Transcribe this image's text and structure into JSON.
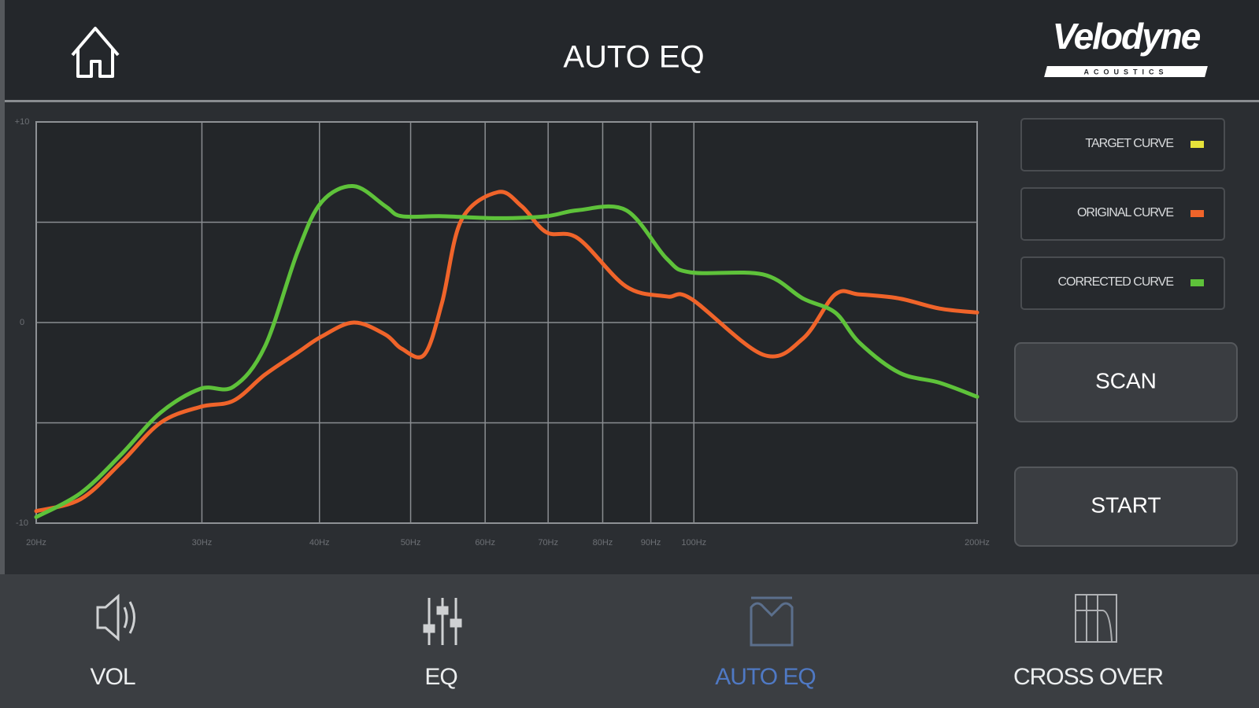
{
  "header": {
    "title": "AUTO EQ",
    "logo": "Velodyne",
    "logo_sub": "ACOUSTICS"
  },
  "chart_data": {
    "type": "line",
    "x_scale": "log",
    "grid": true,
    "xlim": [
      20,
      200
    ],
    "ylim": [
      -10,
      10
    ],
    "xticks": [
      {
        "value": 20,
        "label": "20Hz"
      },
      {
        "value": 30,
        "label": "30Hz"
      },
      {
        "value": 40,
        "label": "40Hz"
      },
      {
        "value": 50,
        "label": "50Hz"
      },
      {
        "value": 60,
        "label": "60Hz"
      },
      {
        "value": 70,
        "label": "70Hz"
      },
      {
        "value": 80,
        "label": "80Hz"
      },
      {
        "value": 90,
        "label": "90Hz"
      },
      {
        "value": 100,
        "label": "100Hz"
      },
      {
        "value": 200,
        "label": "200Hz"
      }
    ],
    "yticks": [
      {
        "value": 10,
        "label": "+10"
      },
      0,
      -10
    ],
    "ygrid": [
      5,
      -5
    ],
    "series": [
      {
        "name": "TARGET CURVE",
        "color": "#e6e23a",
        "x": [],
        "values": []
      },
      {
        "name": "ORIGINAL CURVE",
        "color": "#f0642a",
        "x": [
          20,
          22.3,
          24.6,
          27.1,
          29.9,
          32.4,
          35.0,
          37.9,
          40.2,
          43.5,
          47.0,
          48.9,
          51.7,
          54.0,
          56.6,
          61.9,
          65.6,
          69.7,
          75.3,
          84.7,
          93.5,
          99.2,
          118.4,
          130.6,
          141.3,
          149.9,
          165.3,
          182.4,
          200
        ],
        "values": [
          -9.4,
          -8.8,
          -7.0,
          -5.0,
          -4.2,
          -3.9,
          -2.6,
          -1.5,
          -0.7,
          0,
          -0.6,
          -1.3,
          -1.6,
          1.0,
          5.1,
          6.5,
          5.8,
          4.5,
          4.2,
          1.8,
          1.3,
          1.2,
          -1.6,
          -0.8,
          1.4,
          1.4,
          1.2,
          0.7,
          0.5
        ]
      },
      {
        "name": "CORRECTED CURVE",
        "color": "#5ec23a",
        "x": [
          20,
          22.3,
          24.6,
          27.1,
          29.9,
          32.4,
          35.0,
          37.9,
          40.2,
          43.5,
          47.0,
          48.9,
          54.0,
          61.9,
          69.7,
          75.3,
          84.7,
          93.5,
          99.2,
          118.4,
          130.6,
          141.3,
          149.9,
          165.3,
          182.4,
          200
        ],
        "values": [
          -9.7,
          -8.5,
          -6.6,
          -4.5,
          -3.3,
          -3.2,
          -1.2,
          3.5,
          6.0,
          6.8,
          5.8,
          5.3,
          5.3,
          5.2,
          5.3,
          5.6,
          5.6,
          3.2,
          2.5,
          2.4,
          1.2,
          0.5,
          -1.0,
          -2.5,
          -3.0,
          -3.7
        ]
      }
    ]
  },
  "buttons": [
    "SCAN",
    "START"
  ],
  "nav": {
    "items": [
      "VOL",
      "EQ",
      "AUTO EQ",
      "CROSS OVER"
    ],
    "active": 2
  }
}
